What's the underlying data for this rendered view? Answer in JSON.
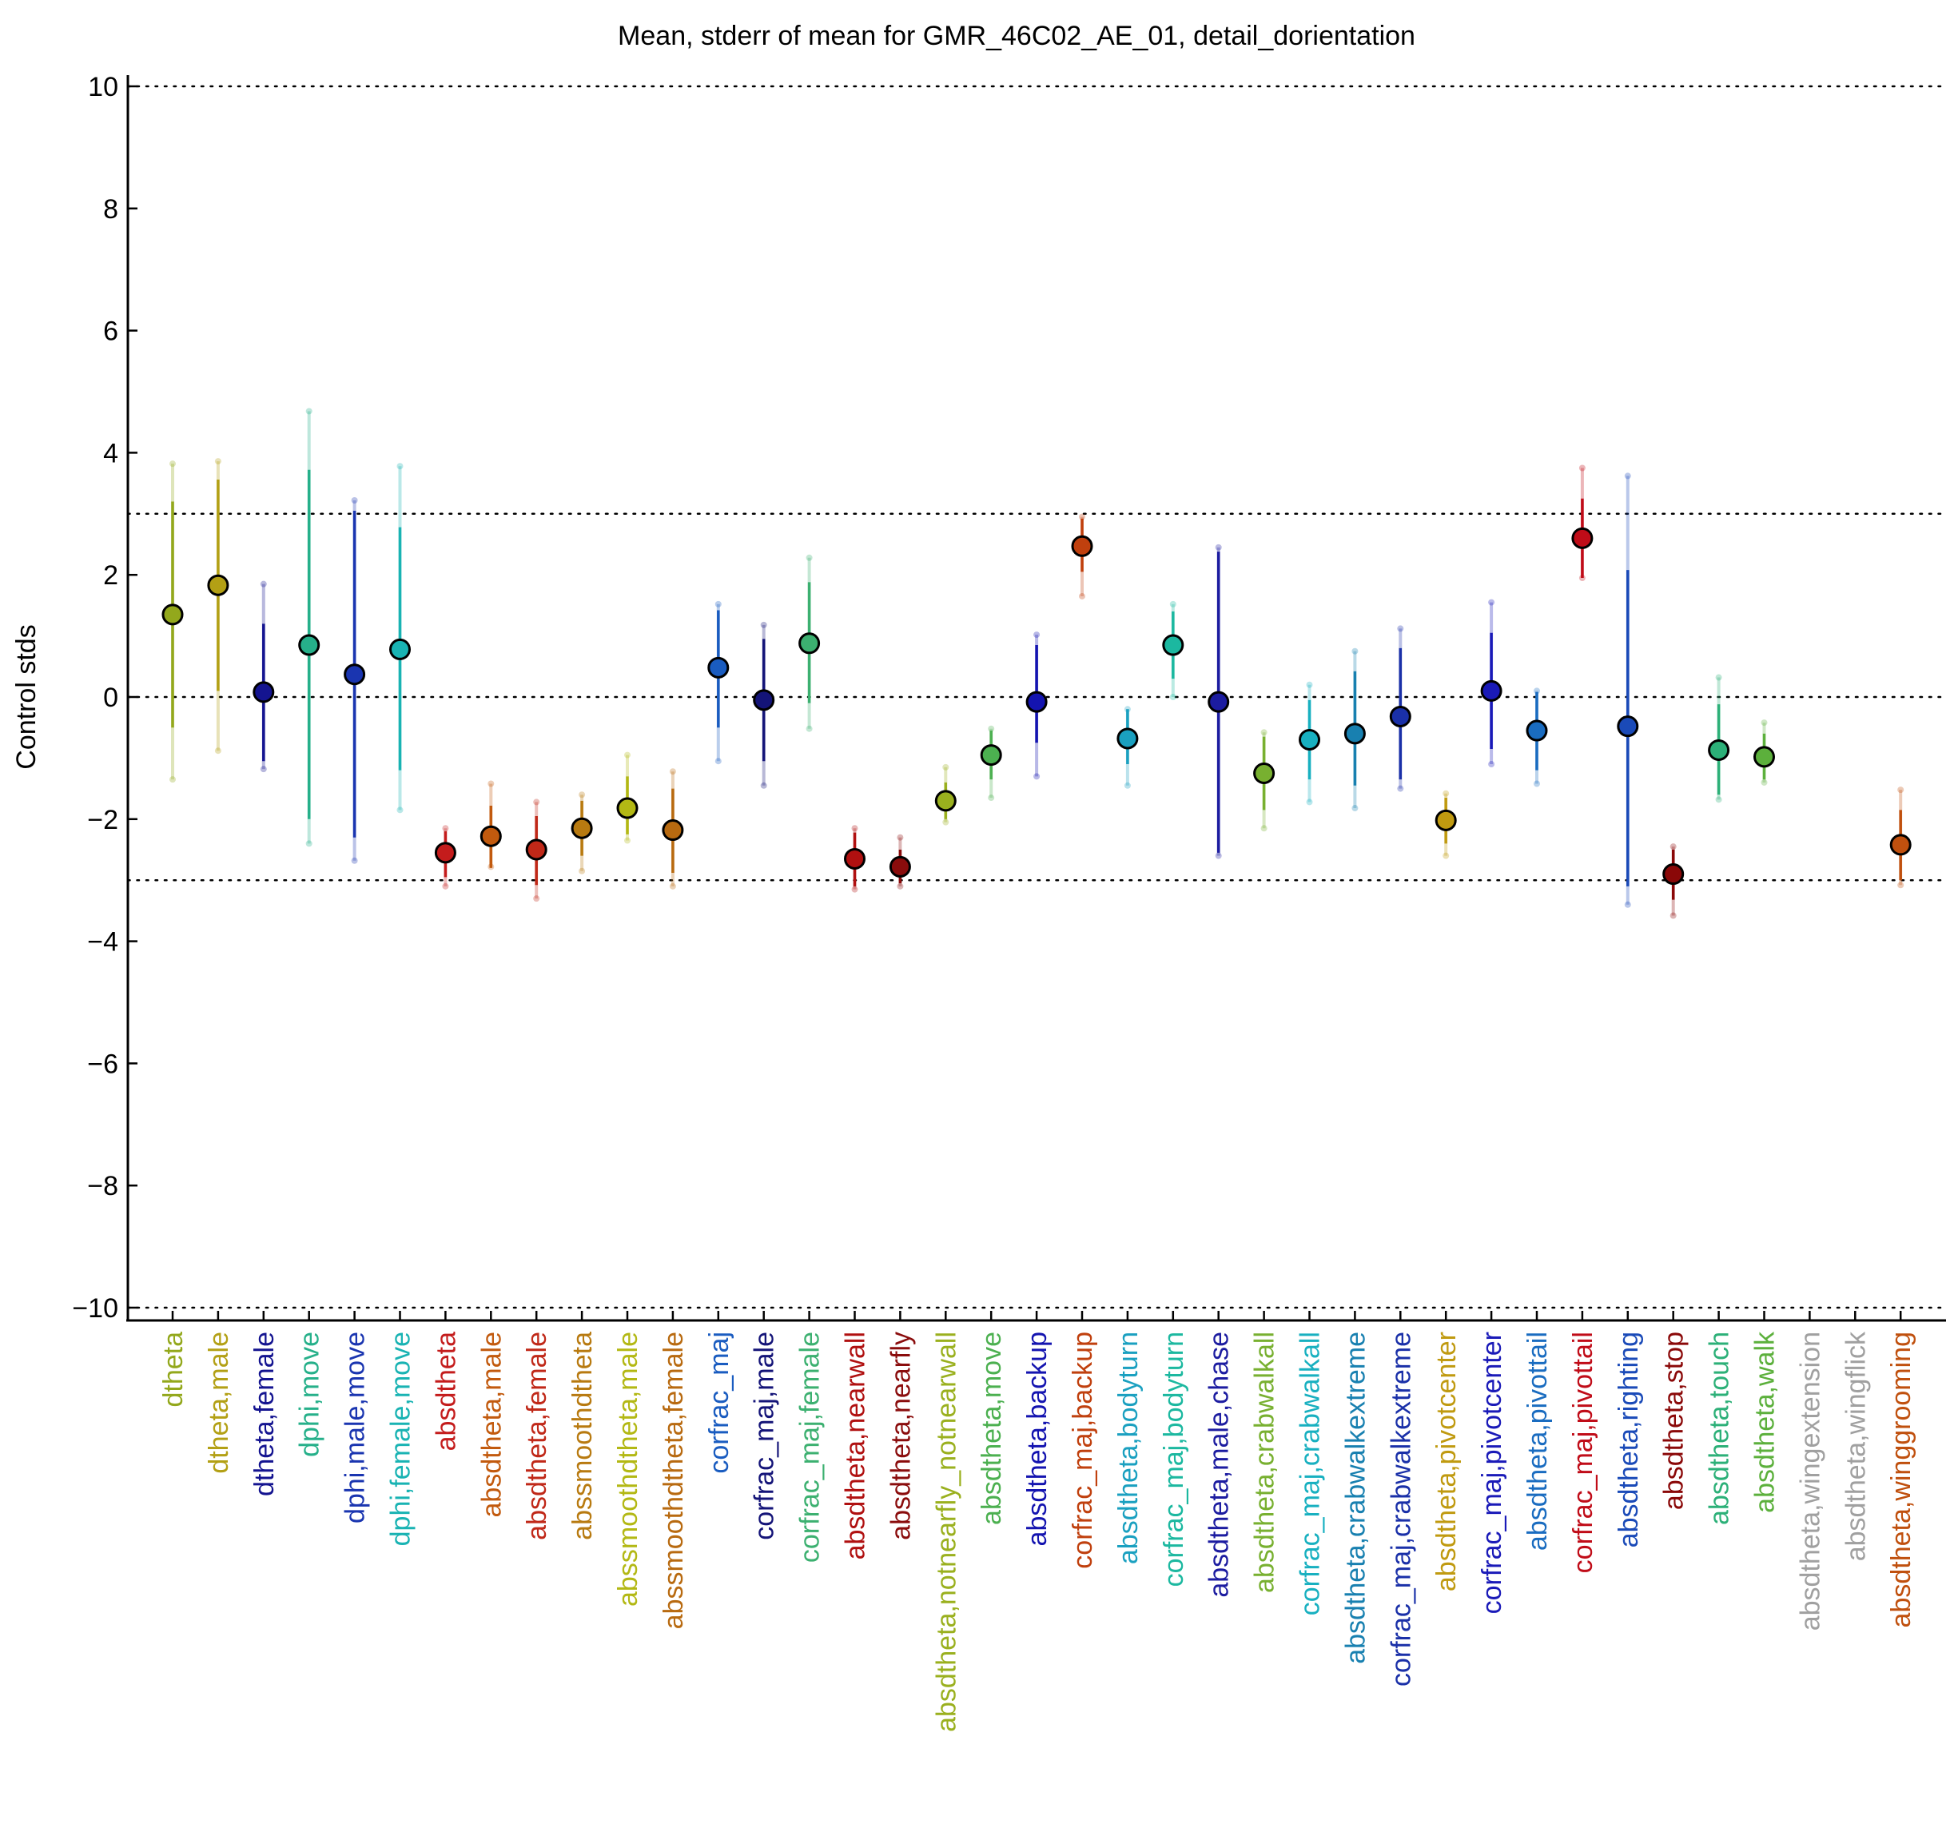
{
  "chart_data": {
    "type": "errorbar",
    "title": "Mean, stderr of mean for GMR_46C02_AE_01, detail_dorientation",
    "xlabel": "",
    "ylabel": "Control stds",
    "ylim": [
      -10.2,
      10.2
    ],
    "yticks": [
      10,
      8,
      6,
      4,
      2,
      0,
      -2,
      -4,
      -6,
      -8,
      -10
    ],
    "ytick_labels": [
      "10",
      "8",
      "6",
      "4",
      "2",
      "0",
      "−2",
      "−4",
      "−6",
      "−8",
      "−10"
    ],
    "reference_lines": [
      10,
      3,
      0,
      -3,
      -10
    ],
    "grid": false,
    "categories": [
      {
        "label": "dtheta",
        "color": "#93a81c",
        "mean": 1.35,
        "sem_lo": -0.5,
        "sem_hi": 3.2,
        "std_lo": -1.35,
        "std_hi": 3.82
      },
      {
        "label": "dtheta,male",
        "color": "#b3a015",
        "mean": 1.83,
        "sem_lo": 0.1,
        "sem_hi": 3.56,
        "std_lo": -0.88,
        "std_hi": 3.86
      },
      {
        "label": "dtheta,female",
        "color": "#141490",
        "mean": 0.08,
        "sem_lo": -1.05,
        "sem_hi": 1.2,
        "std_lo": -1.18,
        "std_hi": 1.85
      },
      {
        "label": "dphi,move",
        "color": "#26b08a",
        "mean": 0.85,
        "sem_lo": -2.0,
        "sem_hi": 3.72,
        "std_lo": -2.4,
        "std_hi": 4.68
      },
      {
        "label": "dphi,male,move",
        "color": "#1a35b0",
        "mean": 0.37,
        "sem_lo": -2.3,
        "sem_hi": 3.05,
        "std_lo": -2.68,
        "std_hi": 3.22
      },
      {
        "label": "dphi,female,move",
        "color": "#19b3b3",
        "mean": 0.78,
        "sem_lo": -1.2,
        "sem_hi": 2.78,
        "std_lo": -1.85,
        "std_hi": 3.78
      },
      {
        "label": "absdtheta",
        "color": "#c41c1c",
        "mean": -2.55,
        "sem_lo": -2.95,
        "sem_hi": -2.2,
        "std_lo": -3.1,
        "std_hi": -2.15
      },
      {
        "label": "absdtheta,male",
        "color": "#c25a0e",
        "mean": -2.28,
        "sem_lo": -2.8,
        "sem_hi": -1.78,
        "std_lo": -2.78,
        "std_hi": -1.42
      },
      {
        "label": "absdtheta,female",
        "color": "#c02818",
        "mean": -2.5,
        "sem_lo": -3.08,
        "sem_hi": -1.95,
        "std_lo": -3.3,
        "std_hi": -1.72
      },
      {
        "label": "abssmoothdtheta",
        "color": "#b87a10",
        "mean": -2.15,
        "sem_lo": -2.6,
        "sem_hi": -1.7,
        "std_lo": -2.85,
        "std_hi": -1.6
      },
      {
        "label": "abssmoothdtheta,male",
        "color": "#b3b814",
        "mean": -1.82,
        "sem_lo": -2.25,
        "sem_hi": -1.3,
        "std_lo": -2.35,
        "std_hi": -0.95
      },
      {
        "label": "abssmoothdtheta,female",
        "color": "#b86a10",
        "mean": -2.18,
        "sem_lo": -2.88,
        "sem_hi": -1.5,
        "std_lo": -3.1,
        "std_hi": -1.22
      },
      {
        "label": "corfrac_maj",
        "color": "#1a5cc0",
        "mean": 0.48,
        "sem_lo": -0.5,
        "sem_hi": 1.42,
        "std_lo": -1.05,
        "std_hi": 1.52
      },
      {
        "label": "corfrac_maj,male",
        "color": "#141478",
        "mean": -0.05,
        "sem_lo": -1.05,
        "sem_hi": 0.95,
        "std_lo": -1.45,
        "std_hi": 1.18
      },
      {
        "label": "corfrac_maj,female",
        "color": "#3cb070",
        "mean": 0.88,
        "sem_lo": -0.1,
        "sem_hi": 1.88,
        "std_lo": -0.52,
        "std_hi": 2.28
      },
      {
        "label": "absdtheta,nearwall",
        "color": "#b01010",
        "mean": -2.65,
        "sem_lo": -3.1,
        "sem_hi": -2.22,
        "std_lo": -3.15,
        "std_hi": -2.15
      },
      {
        "label": "absdtheta,nearfly",
        "color": "#8a0c0c",
        "mean": -2.78,
        "sem_lo": -3.05,
        "sem_hi": -2.5,
        "std_lo": -3.1,
        "std_hi": -2.3
      },
      {
        "label": "absdtheta,notnearfly_notnearwall",
        "color": "#9ab01e",
        "mean": -1.7,
        "sem_lo": -2.0,
        "sem_hi": -1.4,
        "std_lo": -2.05,
        "std_hi": -1.15
      },
      {
        "label": "absdtheta,move",
        "color": "#4cb050",
        "mean": -0.95,
        "sem_lo": -1.35,
        "sem_hi": -0.55,
        "std_lo": -1.65,
        "std_hi": -0.52
      },
      {
        "label": "absdtheta,backup",
        "color": "#1414b0",
        "mean": -0.08,
        "sem_lo": -0.75,
        "sem_hi": 0.85,
        "std_lo": -1.3,
        "std_hi": 1.02
      },
      {
        "label": "corfrac_maj,backup",
        "color": "#c0400e",
        "mean": 2.47,
        "sem_lo": 2.05,
        "sem_hi": 2.92,
        "std_lo": 1.65,
        "std_hi": 2.95
      },
      {
        "label": "absdtheta,bodyturn",
        "color": "#1aa0c0",
        "mean": -0.68,
        "sem_lo": -1.1,
        "sem_hi": -0.2,
        "std_lo": -1.45,
        "std_hi": -0.2
      },
      {
        "label": "corfrac_maj,bodyturn",
        "color": "#1cb8a0",
        "mean": 0.85,
        "sem_lo": 0.3,
        "sem_hi": 1.4,
        "std_lo": 0.0,
        "std_hi": 1.52
      },
      {
        "label": "absdtheta,male,chase",
        "color": "#1c1ca0",
        "mean": -0.08,
        "sem_lo": -2.55,
        "sem_hi": 2.38,
        "std_lo": -2.6,
        "std_hi": 2.45
      },
      {
        "label": "absdtheta,crabwalkall",
        "color": "#78b030",
        "mean": -1.25,
        "sem_lo": -1.85,
        "sem_hi": -0.65,
        "std_lo": -2.15,
        "std_hi": -0.58
      },
      {
        "label": "corfrac_maj,crabwalkall",
        "color": "#18b0c0",
        "mean": -0.7,
        "sem_lo": -1.35,
        "sem_hi": -0.05,
        "std_lo": -1.72,
        "std_hi": 0.2
      },
      {
        "label": "absdtheta,crabwalkextreme",
        "color": "#1880b0",
        "mean": -0.6,
        "sem_lo": -1.45,
        "sem_hi": 0.42,
        "std_lo": -1.82,
        "std_hi": 0.75
      },
      {
        "label": "corfrac_maj,crabwalkextreme",
        "color": "#1a30a8",
        "mean": -0.32,
        "sem_lo": -1.35,
        "sem_hi": 0.8,
        "std_lo": -1.5,
        "std_hi": 1.12
      },
      {
        "label": "absdtheta,pivotcenter",
        "color": "#c09a10",
        "mean": -2.02,
        "sem_lo": -2.4,
        "sem_hi": -1.65,
        "std_lo": -2.6,
        "std_hi": -1.58
      },
      {
        "label": "corfrac_maj,pivotcenter",
        "color": "#1a1ab8",
        "mean": 0.1,
        "sem_lo": -0.85,
        "sem_hi": 1.05,
        "std_lo": -1.1,
        "std_hi": 1.55
      },
      {
        "label": "absdtheta,pivottail",
        "color": "#1a6cc0",
        "mean": -0.55,
        "sem_lo": -1.2,
        "sem_hi": 0.08,
        "std_lo": -1.42,
        "std_hi": 0.1
      },
      {
        "label": "corfrac_maj,pivottail",
        "color": "#c00c18",
        "mean": 2.6,
        "sem_lo": 1.95,
        "sem_hi": 3.25,
        "std_lo": 1.95,
        "std_hi": 3.75
      },
      {
        "label": "absdtheta,righting",
        "color": "#1a4ab8",
        "mean": -0.48,
        "sem_lo": -3.1,
        "sem_hi": 2.08,
        "std_lo": -3.4,
        "std_hi": 3.62
      },
      {
        "label": "absdtheta,stop",
        "color": "#8a0808",
        "mean": -2.9,
        "sem_lo": -3.32,
        "sem_hi": -2.5,
        "std_lo": -3.58,
        "std_hi": -2.45
      },
      {
        "label": "absdtheta,touch",
        "color": "#2cb078",
        "mean": -0.87,
        "sem_lo": -1.6,
        "sem_hi": -0.12,
        "std_lo": -1.68,
        "std_hi": 0.32
      },
      {
        "label": "absdtheta,walk",
        "color": "#5cb03c",
        "mean": -0.98,
        "sem_lo": -1.35,
        "sem_hi": -0.6,
        "std_lo": -1.4,
        "std_hi": -0.42
      },
      {
        "label": "absdtheta,wingextension",
        "color": "#a0a0a0",
        "mean": null,
        "sem_lo": null,
        "sem_hi": null,
        "std_lo": null,
        "std_hi": null
      },
      {
        "label": "absdtheta,wingflick",
        "color": "#a0a0a0",
        "mean": null,
        "sem_lo": null,
        "sem_hi": null,
        "std_lo": null,
        "std_hi": null
      },
      {
        "label": "absdtheta,winggrooming",
        "color": "#c0500e",
        "mean": -2.42,
        "sem_lo": -3.0,
        "sem_hi": -1.85,
        "std_lo": -3.08,
        "std_hi": -1.52
      }
    ]
  }
}
